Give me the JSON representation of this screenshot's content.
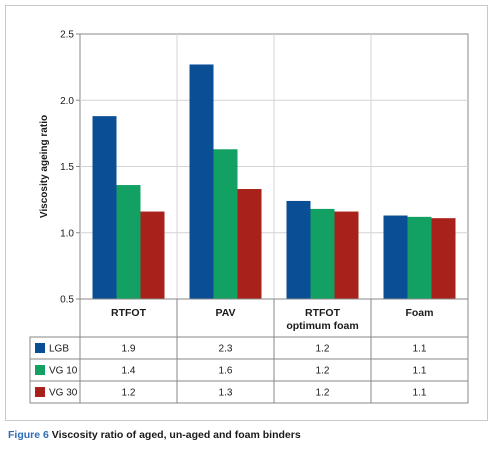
{
  "chart_data": {
    "type": "bar",
    "title": "",
    "xlabel": "",
    "ylabel": "Viscosity ageing ratio",
    "ylim": [
      0.5,
      2.5
    ],
    "yticks": [
      "0.5",
      "1.0",
      "1.5",
      "2.0",
      "2.5"
    ],
    "grid": true,
    "categories": [
      {
        "label": "RTFOT",
        "label_line2": ""
      },
      {
        "label": "PAV",
        "label_line2": ""
      },
      {
        "label": "RTFOT",
        "label_line2": "optimum foam"
      },
      {
        "label": "Foam",
        "label_line2": ""
      }
    ],
    "series": [
      {
        "name": "LGB",
        "color": "#0a4f96",
        "values": [
          1.88,
          2.27,
          1.24,
          1.13
        ],
        "table_values": [
          "1.9",
          "2.3",
          "1.2",
          "1.1"
        ]
      },
      {
        "name": "VG 10",
        "color": "#12a162",
        "values": [
          1.36,
          1.63,
          1.18,
          1.12
        ],
        "table_values": [
          "1.4",
          "1.6",
          "1.2",
          "1.1"
        ]
      },
      {
        "name": "VG 30",
        "color": "#a8221b",
        "values": [
          1.16,
          1.33,
          1.16,
          1.11
        ],
        "table_values": [
          "1.2",
          "1.3",
          "1.2",
          "1.1"
        ]
      }
    ]
  },
  "caption": {
    "figure_label": "Figure 6",
    "text": " Viscosity ratio of aged, un-aged and foam binders"
  }
}
